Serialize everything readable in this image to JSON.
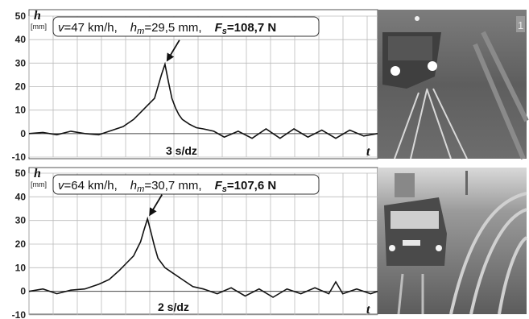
{
  "chart_data": [
    {
      "type": "line",
      "ylabel": "h",
      "yunit": "[mm]",
      "xlabel": "t",
      "ylim": [
        -10,
        50
      ],
      "yticks": [
        -10,
        0,
        10,
        20,
        30,
        40,
        50
      ],
      "grid": true,
      "info": {
        "v_label": "v",
        "v_value": "=47 km/h,",
        "h_label": "h",
        "h_sub": "m",
        "h_value": "=29,5 mm,",
        "f_label": "F",
        "f_sub": "s",
        "f_value": "=108,7 N"
      },
      "time_scale": "3 s/dz",
      "annotation": "peak arrow",
      "series": [
        {
          "x": [
            0,
            0.04,
            0.08,
            0.12,
            0.16,
            0.2,
            0.24,
            0.27,
            0.3,
            0.32,
            0.34,
            0.36,
            0.37,
            0.38,
            0.39,
            0.4,
            0.41,
            0.42,
            0.43,
            0.44,
            0.46,
            0.48,
            0.5,
            0.53,
            0.56,
            0.6,
            0.64,
            0.68,
            0.72,
            0.76,
            0.8,
            0.84,
            0.88,
            0.92,
            0.96,
            1.0
          ],
          "y": [
            0,
            0.5,
            -0.5,
            1,
            0,
            -0.5,
            1.5,
            3,
            6,
            9,
            12,
            15,
            20,
            25,
            29.5,
            22,
            15,
            11,
            8,
            6,
            4,
            2.5,
            2,
            1,
            -1.5,
            1,
            -2,
            2,
            -2,
            2,
            -1.5,
            1.5,
            -2,
            1.5,
            -1,
            0
          ]
        }
      ]
    },
    {
      "type": "line",
      "ylabel": "h",
      "yunit": "[mm]",
      "xlabel": "t",
      "ylim": [
        -10,
        50
      ],
      "yticks": [
        -10,
        0,
        10,
        20,
        30,
        40,
        50
      ],
      "grid": true,
      "info": {
        "v_label": "v",
        "v_value": "=64 km/h,",
        "h_label": "h",
        "h_sub": "m",
        "h_value": "=30,7 mm,",
        "f_label": "F",
        "f_sub": "s",
        "f_value": "=107,6 N"
      },
      "time_scale": "2 s/dz",
      "annotation": "peak arrow",
      "series": [
        {
          "x": [
            0,
            0.04,
            0.08,
            0.12,
            0.16,
            0.2,
            0.23,
            0.26,
            0.28,
            0.3,
            0.31,
            0.32,
            0.33,
            0.34,
            0.35,
            0.36,
            0.37,
            0.39,
            0.41,
            0.44,
            0.47,
            0.5,
            0.54,
            0.58,
            0.62,
            0.66,
            0.7,
            0.74,
            0.78,
            0.82,
            0.86,
            0.88,
            0.9,
            0.94,
            0.98,
            1.0
          ],
          "y": [
            0,
            1,
            -1,
            0.5,
            1,
            3,
            5,
            9,
            12,
            15,
            18,
            21,
            26,
            30.7,
            25,
            19,
            14,
            10,
            8,
            5,
            2,
            1,
            -1,
            1.5,
            -2,
            1,
            -2.5,
            1,
            -1,
            1.5,
            -1,
            4,
            -1,
            1,
            -1,
            0
          ]
        }
      ]
    }
  ],
  "photos": [
    {
      "name": "night-train-photo",
      "badge": "1"
    },
    {
      "name": "day-train-photo",
      "badge": ""
    }
  ]
}
